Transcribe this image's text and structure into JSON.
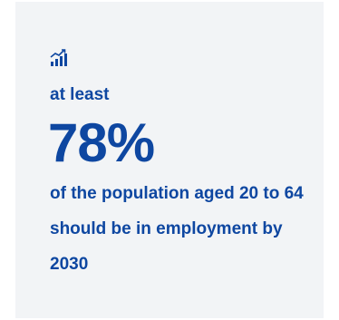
{
  "stat_card": {
    "icon": "chart-growth-icon",
    "pre_text": "at least",
    "value": "78%",
    "description": "of the population aged 20 to 64 should be in employment by 2030",
    "colors": {
      "text": "#0e47a1",
      "background": "#f2f4f6"
    }
  }
}
